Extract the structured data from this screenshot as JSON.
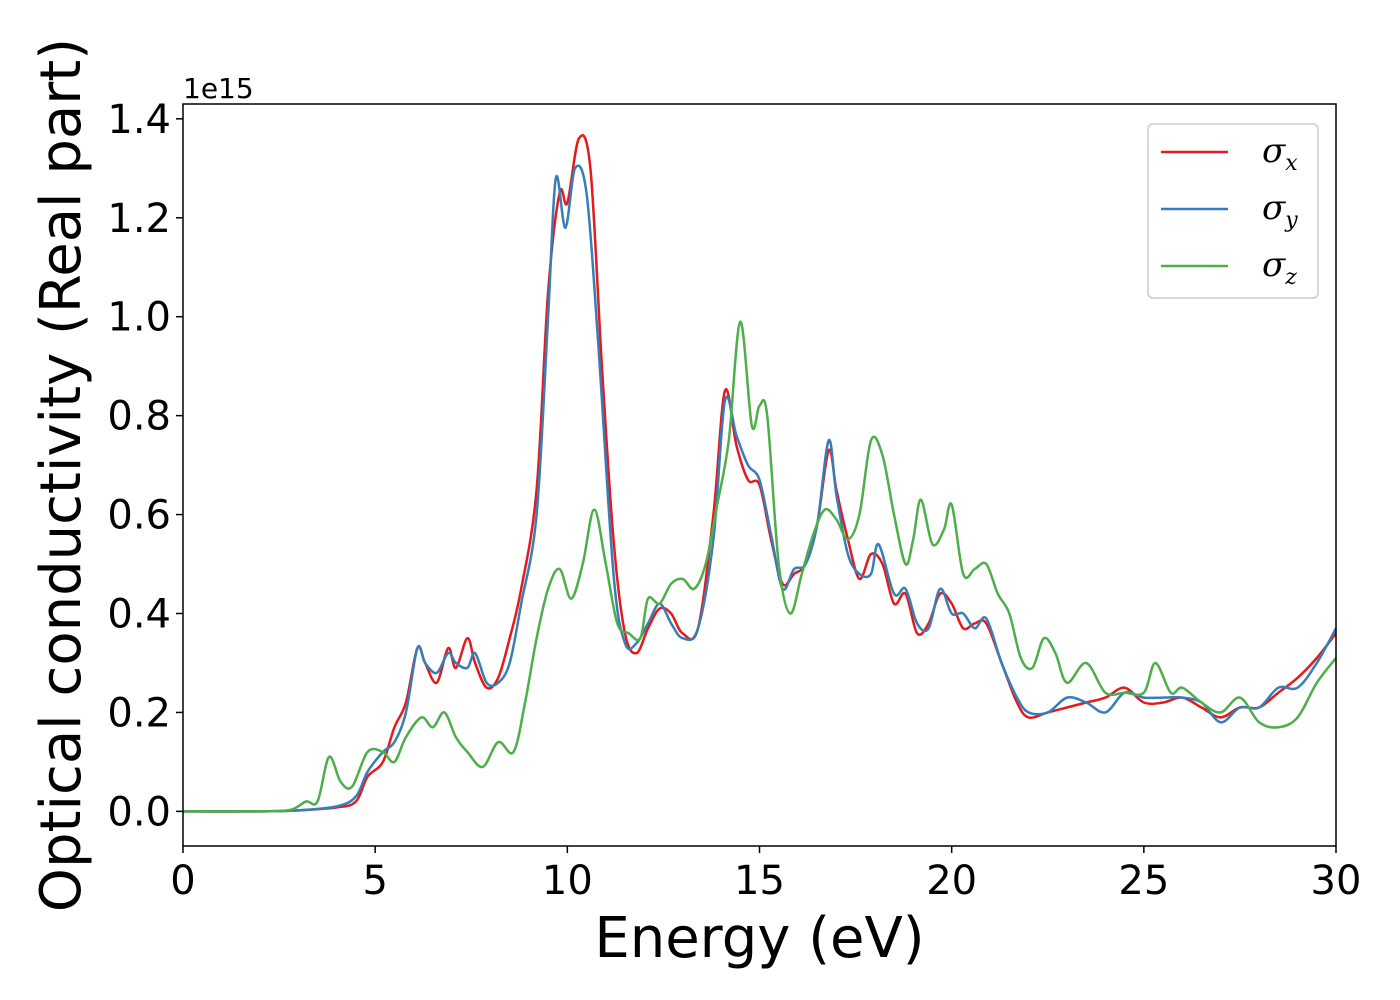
{
  "chart_data": {
    "type": "line",
    "title": "",
    "xlabel": "Energy (eV)",
    "ylabel": "Optical conductivity (Real part)",
    "y_offset_label": "1e15",
    "xlim": [
      0,
      30
    ],
    "ylim": [
      -0.07,
      1.43
    ],
    "x_ticks": [
      0,
      5,
      10,
      15,
      20,
      25,
      30
    ],
    "x_tick_labels": [
      "0",
      "5",
      "10",
      "15",
      "20",
      "25",
      "30"
    ],
    "y_ticks": [
      0.0,
      0.2,
      0.4,
      0.6,
      0.8,
      1.0,
      1.2,
      1.4
    ],
    "y_tick_labels": [
      "0.0",
      "0.2",
      "0.4",
      "0.6",
      "0.8",
      "1.0",
      "1.2",
      "1.4"
    ],
    "grid": false,
    "legend_position": "top-right",
    "series": [
      {
        "name": "σ",
        "subscript": "x",
        "color": "#e41a1c",
        "points": [
          [
            0,
            0
          ],
          [
            2,
            0
          ],
          [
            3,
            0.002
          ],
          [
            4,
            0.008
          ],
          [
            4.5,
            0.02
          ],
          [
            4.8,
            0.07
          ],
          [
            5.2,
            0.1
          ],
          [
            5.5,
            0.17
          ],
          [
            5.8,
            0.22
          ],
          [
            6.1,
            0.33
          ],
          [
            6.3,
            0.3
          ],
          [
            6.6,
            0.26
          ],
          [
            6.9,
            0.33
          ],
          [
            7.1,
            0.29
          ],
          [
            7.4,
            0.35
          ],
          [
            7.6,
            0.3
          ],
          [
            7.9,
            0.25
          ],
          [
            8.2,
            0.27
          ],
          [
            8.5,
            0.35
          ],
          [
            8.8,
            0.45
          ],
          [
            9.2,
            0.65
          ],
          [
            9.5,
            1.05
          ],
          [
            9.8,
            1.25
          ],
          [
            10,
            1.23
          ],
          [
            10.3,
            1.36
          ],
          [
            10.6,
            1.3
          ],
          [
            10.9,
            0.9
          ],
          [
            11.2,
            0.55
          ],
          [
            11.5,
            0.36
          ],
          [
            11.8,
            0.32
          ],
          [
            12.1,
            0.37
          ],
          [
            12.4,
            0.41
          ],
          [
            12.7,
            0.4
          ],
          [
            13.0,
            0.36
          ],
          [
            13.4,
            0.37
          ],
          [
            13.8,
            0.6
          ],
          [
            14.1,
            0.85
          ],
          [
            14.4,
            0.74
          ],
          [
            14.7,
            0.67
          ],
          [
            15.0,
            0.66
          ],
          [
            15.3,
            0.55
          ],
          [
            15.6,
            0.46
          ],
          [
            15.9,
            0.48
          ],
          [
            16.2,
            0.5
          ],
          [
            16.5,
            0.58
          ],
          [
            16.8,
            0.73
          ],
          [
            17.0,
            0.65
          ],
          [
            17.3,
            0.55
          ],
          [
            17.6,
            0.47
          ],
          [
            17.9,
            0.52
          ],
          [
            18.2,
            0.5
          ],
          [
            18.5,
            0.42
          ],
          [
            18.8,
            0.44
          ],
          [
            19.1,
            0.36
          ],
          [
            19.4,
            0.38
          ],
          [
            19.7,
            0.44
          ],
          [
            20.0,
            0.42
          ],
          [
            20.3,
            0.37
          ],
          [
            20.6,
            0.38
          ],
          [
            20.9,
            0.38
          ],
          [
            21.3,
            0.3
          ],
          [
            21.7,
            0.22
          ],
          [
            22.0,
            0.19
          ],
          [
            22.5,
            0.2
          ],
          [
            23.0,
            0.21
          ],
          [
            23.5,
            0.22
          ],
          [
            24.0,
            0.23
          ],
          [
            24.5,
            0.25
          ],
          [
            25.0,
            0.22
          ],
          [
            25.5,
            0.22
          ],
          [
            26.0,
            0.23
          ],
          [
            26.5,
            0.21
          ],
          [
            27.0,
            0.19
          ],
          [
            27.5,
            0.21
          ],
          [
            28.0,
            0.21
          ],
          [
            28.5,
            0.24
          ],
          [
            29.0,
            0.27
          ],
          [
            29.5,
            0.31
          ],
          [
            30,
            0.36
          ]
        ]
      },
      {
        "name": "σ",
        "subscript": "y",
        "color": "#377eb8",
        "points": [
          [
            0,
            0
          ],
          [
            2,
            0
          ],
          [
            3,
            0.002
          ],
          [
            4,
            0.01
          ],
          [
            4.5,
            0.03
          ],
          [
            4.8,
            0.08
          ],
          [
            5.2,
            0.12
          ],
          [
            5.5,
            0.14
          ],
          [
            5.8,
            0.2
          ],
          [
            6.1,
            0.33
          ],
          [
            6.3,
            0.3
          ],
          [
            6.6,
            0.28
          ],
          [
            6.9,
            0.32
          ],
          [
            7.1,
            0.3
          ],
          [
            7.4,
            0.29
          ],
          [
            7.6,
            0.32
          ],
          [
            7.9,
            0.26
          ],
          [
            8.2,
            0.26
          ],
          [
            8.5,
            0.3
          ],
          [
            8.8,
            0.42
          ],
          [
            9.2,
            0.6
          ],
          [
            9.5,
            1.0
          ],
          [
            9.7,
            1.28
          ],
          [
            9.95,
            1.18
          ],
          [
            10.2,
            1.3
          ],
          [
            10.5,
            1.25
          ],
          [
            10.8,
            0.95
          ],
          [
            11.2,
            0.48
          ],
          [
            11.5,
            0.34
          ],
          [
            11.8,
            0.34
          ],
          [
            12.1,
            0.38
          ],
          [
            12.4,
            0.42
          ],
          [
            12.7,
            0.38
          ],
          [
            13.0,
            0.35
          ],
          [
            13.4,
            0.37
          ],
          [
            13.8,
            0.55
          ],
          [
            14.1,
            0.83
          ],
          [
            14.4,
            0.76
          ],
          [
            14.7,
            0.7
          ],
          [
            15.0,
            0.67
          ],
          [
            15.3,
            0.56
          ],
          [
            15.6,
            0.45
          ],
          [
            15.9,
            0.49
          ],
          [
            16.2,
            0.5
          ],
          [
            16.5,
            0.58
          ],
          [
            16.8,
            0.75
          ],
          [
            17.0,
            0.64
          ],
          [
            17.3,
            0.52
          ],
          [
            17.6,
            0.48
          ],
          [
            17.9,
            0.48
          ],
          [
            18.1,
            0.54
          ],
          [
            18.5,
            0.44
          ],
          [
            18.8,
            0.45
          ],
          [
            19.1,
            0.38
          ],
          [
            19.4,
            0.37
          ],
          [
            19.7,
            0.45
          ],
          [
            20.0,
            0.4
          ],
          [
            20.3,
            0.4
          ],
          [
            20.6,
            0.37
          ],
          [
            20.9,
            0.39
          ],
          [
            21.3,
            0.3
          ],
          [
            21.7,
            0.23
          ],
          [
            22.0,
            0.2
          ],
          [
            22.5,
            0.2
          ],
          [
            23.0,
            0.23
          ],
          [
            23.5,
            0.22
          ],
          [
            24.0,
            0.2
          ],
          [
            24.5,
            0.24
          ],
          [
            25.0,
            0.23
          ],
          [
            25.5,
            0.23
          ],
          [
            26.0,
            0.23
          ],
          [
            26.5,
            0.22
          ],
          [
            27.0,
            0.18
          ],
          [
            27.5,
            0.21
          ],
          [
            28.0,
            0.21
          ],
          [
            28.5,
            0.25
          ],
          [
            29.0,
            0.25
          ],
          [
            29.5,
            0.3
          ],
          [
            30,
            0.37
          ]
        ]
      },
      {
        "name": "σ",
        "subscript": "z",
        "color": "#4daf4a",
        "points": [
          [
            0,
            0
          ],
          [
            2,
            0
          ],
          [
            2.8,
            0.003
          ],
          [
            3.2,
            0.02
          ],
          [
            3.5,
            0.02
          ],
          [
            3.8,
            0.11
          ],
          [
            4.1,
            0.06
          ],
          [
            4.4,
            0.05
          ],
          [
            4.8,
            0.12
          ],
          [
            5.2,
            0.12
          ],
          [
            5.5,
            0.1
          ],
          [
            5.8,
            0.15
          ],
          [
            6.2,
            0.19
          ],
          [
            6.5,
            0.17
          ],
          [
            6.8,
            0.2
          ],
          [
            7.1,
            0.15
          ],
          [
            7.4,
            0.12
          ],
          [
            7.8,
            0.09
          ],
          [
            8.2,
            0.14
          ],
          [
            8.6,
            0.12
          ],
          [
            8.9,
            0.22
          ],
          [
            9.2,
            0.35
          ],
          [
            9.5,
            0.45
          ],
          [
            9.8,
            0.49
          ],
          [
            10.1,
            0.43
          ],
          [
            10.4,
            0.5
          ],
          [
            10.7,
            0.61
          ],
          [
            11.0,
            0.5
          ],
          [
            11.3,
            0.38
          ],
          [
            11.6,
            0.36
          ],
          [
            11.9,
            0.35
          ],
          [
            12.1,
            0.43
          ],
          [
            12.4,
            0.42
          ],
          [
            12.7,
            0.46
          ],
          [
            13.0,
            0.47
          ],
          [
            13.3,
            0.45
          ],
          [
            13.6,
            0.5
          ],
          [
            13.9,
            0.62
          ],
          [
            14.2,
            0.75
          ],
          [
            14.5,
            0.99
          ],
          [
            14.8,
            0.78
          ],
          [
            15.0,
            0.82
          ],
          [
            15.2,
            0.8
          ],
          [
            15.5,
            0.5
          ],
          [
            15.8,
            0.4
          ],
          [
            16.1,
            0.48
          ],
          [
            16.4,
            0.56
          ],
          [
            16.7,
            0.61
          ],
          [
            17.0,
            0.59
          ],
          [
            17.3,
            0.55
          ],
          [
            17.6,
            0.6
          ],
          [
            17.9,
            0.75
          ],
          [
            18.2,
            0.72
          ],
          [
            18.5,
            0.6
          ],
          [
            18.8,
            0.5
          ],
          [
            19.0,
            0.55
          ],
          [
            19.2,
            0.63
          ],
          [
            19.5,
            0.54
          ],
          [
            19.8,
            0.57
          ],
          [
            20.0,
            0.62
          ],
          [
            20.3,
            0.48
          ],
          [
            20.6,
            0.49
          ],
          [
            20.9,
            0.5
          ],
          [
            21.2,
            0.44
          ],
          [
            21.5,
            0.4
          ],
          [
            21.8,
            0.31
          ],
          [
            22.1,
            0.29
          ],
          [
            22.4,
            0.35
          ],
          [
            22.7,
            0.32
          ],
          [
            23.0,
            0.26
          ],
          [
            23.5,
            0.3
          ],
          [
            24.0,
            0.24
          ],
          [
            24.5,
            0.24
          ],
          [
            25.0,
            0.24
          ],
          [
            25.3,
            0.3
          ],
          [
            25.7,
            0.24
          ],
          [
            26.0,
            0.25
          ],
          [
            26.5,
            0.22
          ],
          [
            27.0,
            0.2
          ],
          [
            27.5,
            0.23
          ],
          [
            28.0,
            0.18
          ],
          [
            28.5,
            0.17
          ],
          [
            29.0,
            0.19
          ],
          [
            29.5,
            0.26
          ],
          [
            30,
            0.31
          ]
        ]
      }
    ]
  }
}
